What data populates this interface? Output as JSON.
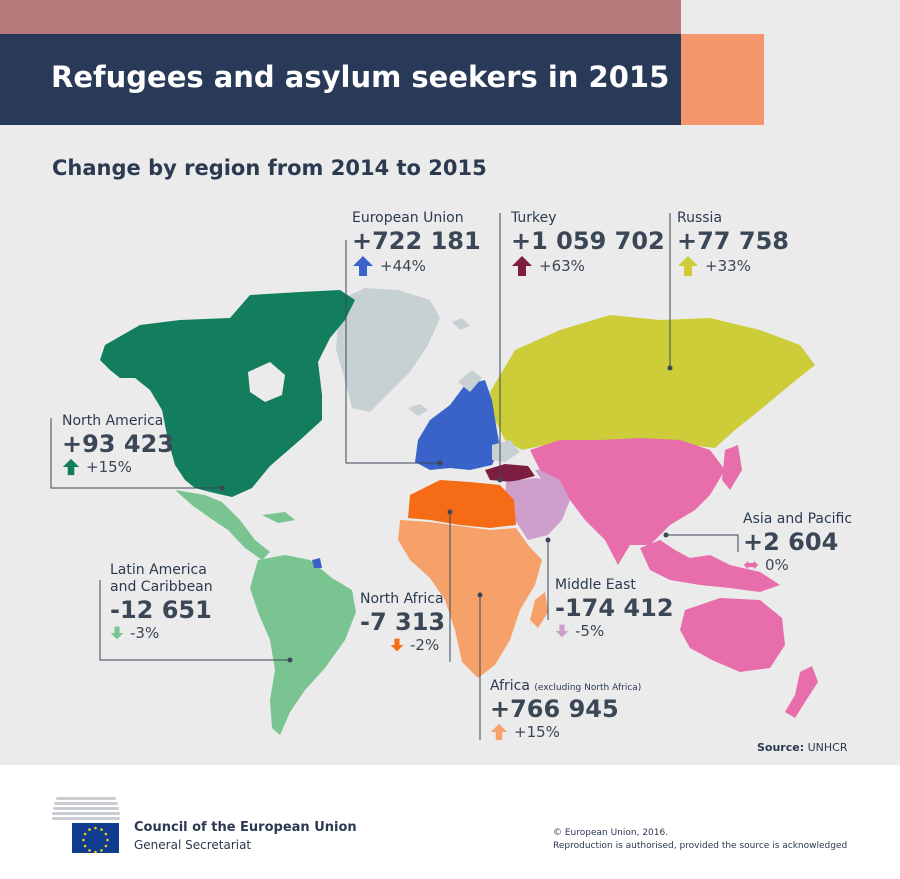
{
  "header": {
    "title": "Refugees and asylum seekers in 2015",
    "subtitle": "Change by region from 2014 to 2015"
  },
  "colors": {
    "header_bg": "#283a57",
    "top_band": "#b47a7c",
    "accent_orange": "#f4956c",
    "map_bg": "#ebebeb",
    "no_data": "#c7d0d3",
    "european_union": "#3a63c9",
    "turkey": "#7d1d3f",
    "russia": "#cdcd3a",
    "north_america": "#137e5e",
    "latin_america": "#79c490",
    "north_africa": "#f56b16",
    "africa": "#f7a16a",
    "middle_east": "#cf9fcb",
    "asia_pacific": "#e86dab"
  },
  "regions": {
    "european_union": {
      "label": "European Union",
      "value": "+722 181",
      "pct": "+44%",
      "direction": "up"
    },
    "turkey": {
      "label": "Turkey",
      "value": "+1 059 702",
      "pct": "+63%",
      "direction": "up"
    },
    "russia": {
      "label": "Russia",
      "value": "+77 758",
      "pct": "+33%",
      "direction": "up"
    },
    "north_america": {
      "label": "North America",
      "value": "+93 423",
      "pct": "+15%",
      "direction": "up"
    },
    "latin_america": {
      "label1": "Latin America",
      "label2": "and Caribbean",
      "value": "-12 651",
      "pct": "-3%",
      "direction": "down"
    },
    "north_africa": {
      "label": "North Africa",
      "value": "-7 313",
      "pct": "-2%",
      "direction": "down"
    },
    "middle_east": {
      "label": "Middle East",
      "value": "-174 412",
      "pct": "-5%",
      "direction": "down"
    },
    "asia_pacific": {
      "label": "Asia and Pacific",
      "value": "+2 604",
      "pct": "0%",
      "direction": "both"
    },
    "africa": {
      "label": "Africa",
      "note": "(excluding North Africa)",
      "value": "+766 945",
      "pct": "+15%",
      "direction": "up"
    }
  },
  "source": {
    "label": "Source:",
    "value": "UNHCR"
  },
  "footer": {
    "org_name": "Council of the European Union",
    "org_sub": "General Secretariat",
    "copyright": "© European Union, 2016.",
    "reproduction": "Reproduction is authorised, provided the source is acknowledged"
  },
  "icons": {
    "up": "up-arrow-icon",
    "down": "down-arrow-icon",
    "both": "left-right-arrow-icon",
    "logo": "eu-flag-icon",
    "building": "council-building-icon"
  }
}
